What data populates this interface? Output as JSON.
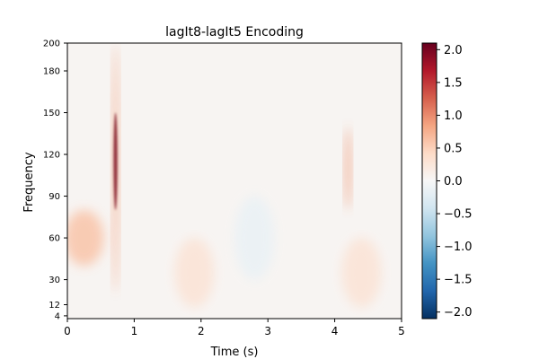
{
  "chart_data": {
    "type": "heatmap",
    "title": "lagIt8-lagIt5 Encoding",
    "xlabel": "Time (s)",
    "ylabel": "Frequency",
    "xlim": [
      0,
      5
    ],
    "ylim": [
      2,
      200
    ],
    "x_ticks": [
      0,
      1,
      2,
      3,
      4,
      5
    ],
    "x_tick_labels": [
      "0",
      "1",
      "2",
      "3",
      "4",
      "5"
    ],
    "y_ticks": [
      4,
      12,
      30,
      60,
      90,
      120,
      150,
      180,
      200
    ],
    "y_tick_labels": [
      "4",
      "12",
      "30",
      "60",
      "90",
      "120",
      "150",
      "180",
      "200"
    ],
    "colormap": "RdBu_r",
    "colorbar": {
      "vmin": -2.1,
      "vmax": 2.1,
      "ticks": [
        2.0,
        1.5,
        1.0,
        0.5,
        0.0,
        -0.5,
        -1.0,
        -1.5,
        -2.0
      ],
      "tick_labels": [
        "2.0",
        "1.5",
        "1.0",
        "0.5",
        "0.0",
        "−0.5",
        "−1.0",
        "−1.5",
        "−2.0"
      ]
    },
    "features": [
      {
        "t": 0.72,
        "f_low": 80,
        "f_high": 150,
        "value": 2.1
      },
      {
        "t": 0.72,
        "f_low": 20,
        "f_high": 200,
        "value": 0.8
      },
      {
        "t": 0.25,
        "f_low": 40,
        "f_high": 80,
        "value": 0.6
      },
      {
        "t": 4.2,
        "f_low": 80,
        "f_high": 140,
        "value": 0.9
      },
      {
        "t": 1.9,
        "f_low": 10,
        "f_high": 60,
        "value": 0.3
      },
      {
        "t": 4.4,
        "f_low": 10,
        "f_high": 60,
        "value": 0.3
      },
      {
        "t": 2.8,
        "f_low": 30,
        "f_high": 90,
        "value": -0.15
      }
    ],
    "grid": false
  }
}
